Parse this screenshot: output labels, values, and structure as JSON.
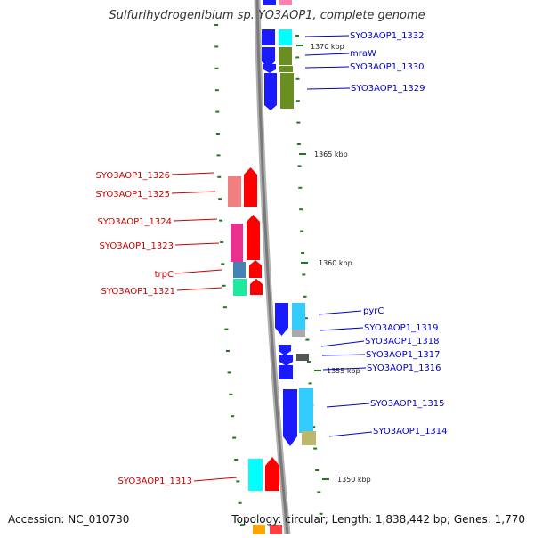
{
  "title": "Sulfurihydrogenibium sp. YO3AOP1, complete genome",
  "footer": {
    "accession_label": "Accession: NC_010730",
    "topology_label": "Topology: circular; Length: 1,838,442 bp; Genes: 1,770"
  },
  "scale_labels": [
    "1370 kbp",
    "1365 kbp",
    "1360 kbp",
    "1355 kbp",
    "1350 kbp"
  ],
  "genes_reverse": [
    {
      "name": "SYO3AOP1_1326",
      "color": "#f08080"
    },
    {
      "name": "SYO3AOP1_1325",
      "color": "#f08080"
    },
    {
      "name": "SYO3AOP1_1324",
      "color": "#e8308c"
    },
    {
      "name": "SYO3AOP1_1323",
      "color": "#e8308c"
    },
    {
      "name": "trpC",
      "color": "#4682b4"
    },
    {
      "name": "SYO3AOP1_1321",
      "color": "#1de9a0"
    },
    {
      "name": "SYO3AOP1_1313",
      "color": "#00ffff"
    }
  ],
  "genes_forward": [
    {
      "name": "SYO3AOP1_1332",
      "color": "#00ffff"
    },
    {
      "name": "mraW",
      "color": "#6b8e23"
    },
    {
      "name": "SYO3AOP1_1330",
      "color": "#6b8e23"
    },
    {
      "name": "SYO3AOP1_1329",
      "color": "#6b8e23"
    },
    {
      "name": "pyrC",
      "color": "#33ccff"
    },
    {
      "name": "SYO3AOP1_1319",
      "color": "#33ccff"
    },
    {
      "name": "SYO3AOP1_1318",
      "color": "#1a1aff"
    },
    {
      "name": "SYO3AOP1_1317",
      "color": "#555555"
    },
    {
      "name": "SYO3AOP1_1316",
      "color": "#1a1aff"
    },
    {
      "name": "SYO3AOP1_1315",
      "color": "#33ccff"
    },
    {
      "name": "SYO3AOP1_1314",
      "color": "#bdb76b"
    }
  ],
  "colors": {
    "reverse_strand": "#ff0000",
    "forward_strand": "#0000ee",
    "backbone": "#808080",
    "tick": "#1f7a1f"
  }
}
